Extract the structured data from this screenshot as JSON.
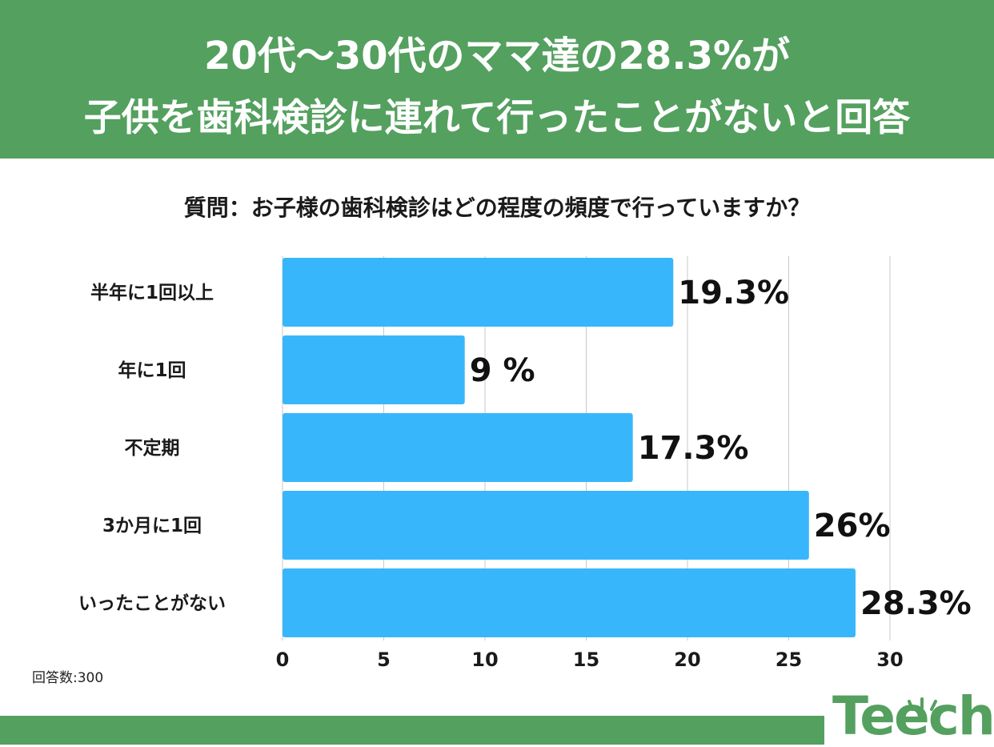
{
  "header": {
    "line1": "20代〜30代のママ達の28.3%が",
    "line2": "子供を歯科検診に連れて行ったことがないと回答"
  },
  "question": "質問：お子様の歯科検診はどの程度の頻度で行っていますか？",
  "footnote": "回答数:300",
  "logo": {
    "text": "Teech"
  },
  "colors": {
    "header_green": "#54a05f",
    "bar_blue": "#38b6fc",
    "grid": "#c8c8c8"
  },
  "chart_data": {
    "type": "bar",
    "orientation": "horizontal",
    "categories": [
      "半年に1回以上",
      "年に1回",
      "不定期",
      "3か月に1回",
      "いったことがない"
    ],
    "values": [
      19.3,
      9,
      17.3,
      26,
      28.3
    ],
    "value_labels": [
      "19.3%",
      "9 %",
      "17.3%",
      "26%",
      "28.3%"
    ],
    "x_ticks": [
      "0",
      "5",
      "10",
      "15",
      "20",
      "25",
      "30"
    ],
    "xlim": [
      0,
      30
    ],
    "grid": true,
    "legend": "none"
  }
}
